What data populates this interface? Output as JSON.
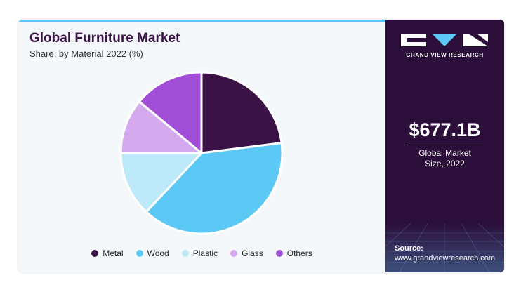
{
  "chart_data": {
    "type": "pie",
    "title": "Global Furniture Market",
    "subtitle": "Share, by Material 2022 (%)",
    "categories": [
      "Metal",
      "Wood",
      "Plastic",
      "Glass",
      "Others"
    ],
    "values": [
      23,
      39,
      13,
      11,
      14
    ],
    "colors": [
      "#3a1246",
      "#5bc8f5",
      "#bde9f9",
      "#d4a9ee",
      "#a04fd6"
    ]
  },
  "panel": {
    "logo_text": "GRAND VIEW RESEARCH",
    "market_size": "$677.1B",
    "market_size_label": "Global Market Size, 2022",
    "source_label": "Source:",
    "source_url": "www.grandviewresearch.com"
  }
}
